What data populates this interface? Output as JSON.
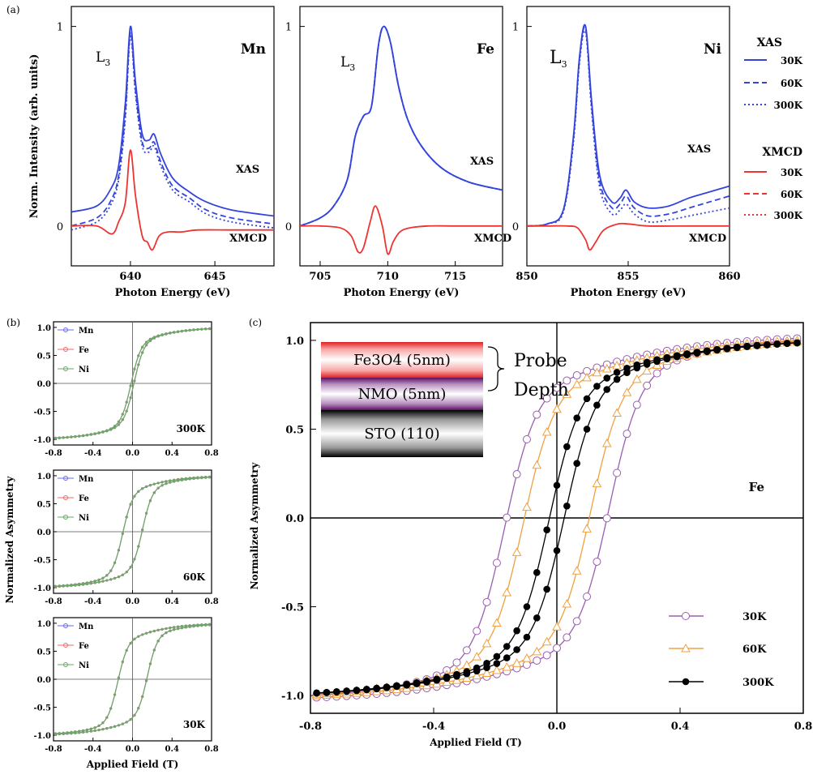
{
  "panel_labels": {
    "a": "(a)",
    "b": "(b)",
    "c": "(c)"
  },
  "colors": {
    "xas": "#3344dd",
    "xmcd": "#ee3333",
    "k30": "#9a5fb0",
    "k60": "#f0a040",
    "k300": "#000000",
    "mn": "#6a6aee",
    "fe": "#ee6a6a",
    "ni": "#66aa66"
  },
  "chart_data": [
    {
      "type": "line",
      "panel": "a",
      "element": "Mn",
      "edge_label": "L3",
      "xlabel": "Photon Energy  (eV)",
      "ylabel": "Norm. Intensity  (arb. units)",
      "xlim": [
        636.5,
        648.5
      ],
      "ylim": [
        -0.2,
        1.1
      ],
      "xticks": [
        640,
        645
      ],
      "yticks": [
        0,
        1
      ],
      "annotations": [
        "XAS",
        "XMCD"
      ],
      "series": [
        {
          "name": "XAS 30K",
          "style": "solid",
          "x": [
            636.5,
            638,
            638.8,
            639.3,
            639.7,
            640.0,
            640.3,
            640.7,
            641.1,
            641.4,
            641.8,
            642.5,
            643.5,
            644.5,
            646,
            648.5
          ],
          "y": [
            0.07,
            0.1,
            0.18,
            0.3,
            0.62,
            1.0,
            0.72,
            0.46,
            0.43,
            0.46,
            0.36,
            0.24,
            0.17,
            0.12,
            0.08,
            0.05
          ]
        },
        {
          "name": "XAS 60K",
          "style": "dashed",
          "x": [
            636.5,
            638,
            638.8,
            639.3,
            639.7,
            640.0,
            640.3,
            640.7,
            641.1,
            641.4,
            641.8,
            642.5,
            643.5,
            644.5,
            646,
            648.5
          ],
          "y": [
            0.0,
            0.04,
            0.12,
            0.25,
            0.57,
            0.97,
            0.68,
            0.42,
            0.39,
            0.42,
            0.32,
            0.2,
            0.14,
            0.08,
            0.04,
            0.01
          ]
        },
        {
          "name": "XAS 300K",
          "style": "dotted",
          "x": [
            636.5,
            638,
            638.8,
            639.3,
            639.7,
            640.0,
            640.3,
            640.7,
            641.1,
            641.4,
            641.8,
            642.5,
            643.5,
            644.5,
            646,
            648.5
          ],
          "y": [
            -0.02,
            0.02,
            0.1,
            0.23,
            0.54,
            0.95,
            0.66,
            0.4,
            0.37,
            0.4,
            0.3,
            0.18,
            0.12,
            0.06,
            0.02,
            -0.01
          ]
        },
        {
          "name": "XMCD 30K",
          "style": "solid",
          "x": [
            636.5,
            638,
            638.9,
            639.3,
            639.7,
            640.0,
            640.3,
            640.7,
            641.0,
            641.3,
            641.7,
            642.2,
            643,
            644,
            646,
            648.5
          ],
          "y": [
            0,
            0,
            -0.04,
            0.02,
            0.12,
            0.38,
            0.15,
            -0.05,
            -0.08,
            -0.12,
            -0.05,
            -0.03,
            -0.03,
            -0.02,
            -0.02,
            -0.02
          ]
        }
      ]
    },
    {
      "type": "line",
      "panel": "a",
      "element": "Fe",
      "edge_label": "L3",
      "xlabel": "Photon Energy  (eV)",
      "ylabel": "",
      "xlim": [
        703.5,
        718.5
      ],
      "ylim": [
        -0.2,
        1.1
      ],
      "xticks": [
        705,
        710,
        715
      ],
      "yticks": [
        0,
        1
      ],
      "annotations": [
        "XAS",
        "XMCD"
      ],
      "series": [
        {
          "name": "XAS 30K",
          "style": "solid",
          "x": [
            703.5,
            705,
            706,
            707,
            707.6,
            708.2,
            708.8,
            709.3,
            709.7,
            710.2,
            710.8,
            711.5,
            712.5,
            714,
            716,
            718.5
          ],
          "y": [
            0.0,
            0.04,
            0.1,
            0.23,
            0.45,
            0.55,
            0.6,
            0.9,
            1.0,
            0.92,
            0.7,
            0.53,
            0.4,
            0.29,
            0.22,
            0.18
          ]
        },
        {
          "name": "XAS 60K",
          "style": "dashed",
          "x": [
            703.5,
            705,
            706,
            707,
            707.6,
            708.2,
            708.8,
            709.3,
            709.7,
            710.2,
            710.8,
            711.5,
            712.5,
            714,
            716,
            718.5
          ],
          "y": [
            0.0,
            0.04,
            0.1,
            0.23,
            0.45,
            0.55,
            0.6,
            0.9,
            1.0,
            0.92,
            0.7,
            0.53,
            0.4,
            0.29,
            0.22,
            0.18
          ]
        },
        {
          "name": "XAS 300K",
          "style": "dotted",
          "x": [
            703.5,
            705,
            706,
            707,
            707.6,
            708.2,
            708.8,
            709.3,
            709.7,
            710.2,
            710.8,
            711.5,
            712.5,
            714,
            716,
            718.5
          ],
          "y": [
            0.0,
            0.04,
            0.1,
            0.23,
            0.45,
            0.55,
            0.6,
            0.9,
            1.0,
            0.92,
            0.7,
            0.53,
            0.4,
            0.29,
            0.22,
            0.18
          ]
        },
        {
          "name": "XMCD 30K",
          "style": "solid",
          "x": [
            703.5,
            705,
            706.5,
            707.3,
            707.8,
            708.2,
            708.7,
            709.1,
            709.6,
            710.0,
            710.4,
            710.9,
            711.6,
            713,
            715,
            718.5
          ],
          "y": [
            0,
            0,
            -0.01,
            -0.05,
            -0.13,
            -0.11,
            0.02,
            0.1,
            0.0,
            -0.14,
            -0.08,
            -0.03,
            -0.01,
            0,
            0,
            0
          ]
        }
      ]
    },
    {
      "type": "line",
      "panel": "a",
      "element": "Ni",
      "edge_label": "L3",
      "xlabel": "Photon Energy  (eV)",
      "ylabel": "",
      "xlim": [
        850,
        860
      ],
      "ylim": [
        -0.2,
        1.1
      ],
      "xticks": [
        850,
        855,
        860
      ],
      "yticks": [
        0,
        1
      ],
      "annotations": [
        "XAS",
        "XMCD"
      ],
      "series": [
        {
          "name": "XAS 30K",
          "style": "solid",
          "x": [
            850,
            851,
            851.8,
            852.3,
            852.6,
            852.9,
            853.2,
            853.6,
            854.2,
            854.6,
            854.9,
            855.3,
            856,
            857,
            858,
            859,
            860
          ],
          "y": [
            0.0,
            0.01,
            0.08,
            0.45,
            0.85,
            1.0,
            0.62,
            0.25,
            0.12,
            0.14,
            0.18,
            0.12,
            0.09,
            0.1,
            0.14,
            0.17,
            0.2
          ]
        },
        {
          "name": "XAS 60K",
          "style": "dashed",
          "x": [
            850,
            851,
            851.8,
            852.3,
            852.6,
            852.9,
            853.2,
            853.6,
            854.2,
            854.6,
            854.9,
            855.3,
            856,
            857,
            858,
            859,
            860
          ],
          "y": [
            0.0,
            0.01,
            0.08,
            0.44,
            0.84,
            0.99,
            0.6,
            0.22,
            0.09,
            0.11,
            0.15,
            0.09,
            0.05,
            0.06,
            0.09,
            0.12,
            0.15
          ]
        },
        {
          "name": "XAS 300K",
          "style": "dotted",
          "x": [
            850,
            851,
            851.8,
            852.3,
            852.6,
            852.9,
            853.2,
            853.6,
            854.2,
            854.6,
            854.9,
            855.3,
            856,
            857,
            858,
            859,
            860
          ],
          "y": [
            0.0,
            0.01,
            0.07,
            0.42,
            0.82,
            0.97,
            0.57,
            0.19,
            0.06,
            0.08,
            0.11,
            0.06,
            0.02,
            0.03,
            0.05,
            0.07,
            0.09
          ]
        },
        {
          "name": "XMCD 30K",
          "style": "solid",
          "x": [
            850,
            851,
            852,
            852.5,
            852.9,
            853.1,
            853.4,
            853.8,
            854.5,
            855,
            856,
            858,
            860
          ],
          "y": [
            0,
            0,
            0,
            -0.01,
            -0.07,
            -0.12,
            -0.08,
            -0.02,
            0.01,
            0.01,
            0,
            0,
            0
          ]
        }
      ]
    },
    {
      "type": "scatter",
      "panel": "b",
      "temperature": "300K",
      "xlim": [
        -0.8,
        0.8
      ],
      "ylim": [
        -1.1,
        1.1
      ],
      "xticks": [
        -0.8,
        -0.4,
        0.0,
        0.4,
        0.8
      ],
      "xtick_labels": [
        "-0.8",
        "-0.4",
        "0.0",
        "0.4",
        "0.8"
      ],
      "yticks": [
        -1.0,
        -0.5,
        0.0,
        0.5,
        1.0
      ],
      "ytick_labels": [
        "-1.0",
        "-0.5",
        "0.0",
        "0.5",
        "1.0"
      ],
      "series": [
        {
          "name": "Mn",
          "coercive_field": 0.015,
          "saturation": 1.0
        },
        {
          "name": "Fe",
          "coercive_field": 0.015,
          "saturation": 1.0
        },
        {
          "name": "Ni",
          "coercive_field": 0.015,
          "saturation": 1.0
        }
      ]
    },
    {
      "type": "scatter",
      "panel": "b",
      "temperature": "60K",
      "ylabel": "Normalized Asymmetry",
      "xlim": [
        -0.8,
        0.8
      ],
      "ylim": [
        -1.1,
        1.1
      ],
      "xticks": [
        -0.8,
        -0.4,
        0.0,
        0.4,
        0.8
      ],
      "xtick_labels": [
        "-0.8",
        "-0.4",
        "0.0",
        "0.4",
        "0.8"
      ],
      "yticks": [
        -1.0,
        -0.5,
        0.0,
        0.5,
        1.0
      ],
      "ytick_labels": [
        "-1.0",
        "-0.5",
        "0.0",
        "0.5",
        "1.0"
      ],
      "series": [
        {
          "name": "Mn",
          "coercive_field": 0.1,
          "saturation": 1.0
        },
        {
          "name": "Fe",
          "coercive_field": 0.1,
          "saturation": 1.0
        },
        {
          "name": "Ni",
          "coercive_field": 0.1,
          "saturation": 1.0
        }
      ]
    },
    {
      "type": "scatter",
      "panel": "b",
      "temperature": "30K",
      "xlabel": "Applied Field (T)",
      "xlim": [
        -0.8,
        0.8
      ],
      "ylim": [
        -1.1,
        1.1
      ],
      "xticks": [
        -0.8,
        -0.4,
        0.0,
        0.4,
        0.8
      ],
      "xtick_labels": [
        "-0.8",
        "-0.4",
        "0.0",
        "0.4",
        "0.8"
      ],
      "yticks": [
        -1.0,
        -0.5,
        0.0,
        0.5,
        1.0
      ],
      "ytick_labels": [
        "-1.0",
        "-0.5",
        "0.0",
        "0.5",
        "1.0"
      ],
      "series": [
        {
          "name": "Mn",
          "coercive_field": 0.15,
          "saturation": 1.0
        },
        {
          "name": "Fe",
          "coercive_field": 0.15,
          "saturation": 1.0
        },
        {
          "name": "Ni",
          "coercive_field": 0.15,
          "saturation": 1.0
        }
      ]
    },
    {
      "type": "scatter",
      "panel": "c",
      "element": "Fe",
      "xlabel": "Applied Field (T)",
      "ylabel": "Normalized Asymmetry",
      "xlim": [
        -0.8,
        0.8
      ],
      "ylim": [
        -1.1,
        1.1
      ],
      "xticks": [
        -0.8,
        -0.4,
        0.0,
        0.4,
        0.8
      ],
      "xtick_labels": [
        "-0.8",
        "-0.4",
        "0.0",
        "0.4",
        "0.8"
      ],
      "yticks": [
        -1.0,
        -0.5,
        0.0,
        0.5,
        1.0
      ],
      "ytick_labels": [
        "-1.0",
        "-0.5",
        "0.0",
        "0.5",
        "1.0"
      ],
      "series": [
        {
          "name": "30K",
          "marker": "open-circle",
          "coercive_field": 0.17,
          "saturation": 1.03
        },
        {
          "name": "60K",
          "marker": "open-triangle",
          "coercive_field": 0.11,
          "saturation": 1.02
        },
        {
          "name": "300K",
          "marker": "filled-circle",
          "coercive_field": 0.025,
          "saturation": 1.01
        }
      ]
    }
  ],
  "legend_a": {
    "xas_title": "XAS",
    "xmcd_title": "XMCD",
    "temps": [
      "30K",
      "60K",
      "300K"
    ]
  },
  "inset": {
    "layers": [
      "Fe3O4 (5nm)",
      "NMO (5nm)",
      "STO (110)"
    ],
    "probe_label_1": "Probe",
    "probe_label_2": "Depth"
  }
}
